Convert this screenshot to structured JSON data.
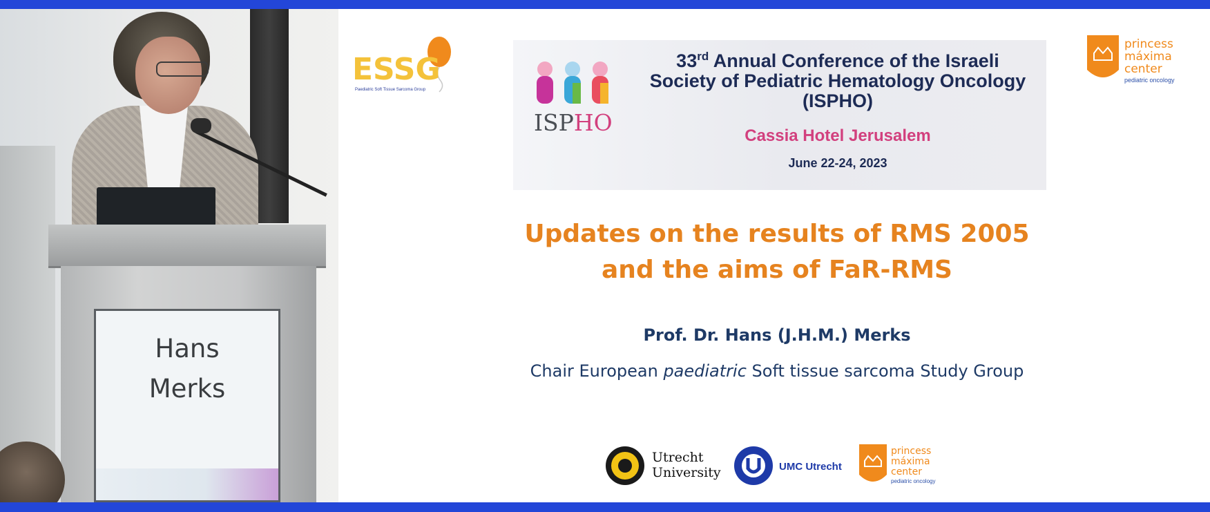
{
  "speaker_panel": {
    "podium_name_line1": "Hans",
    "podium_name_line2": "Merks"
  },
  "slide": {
    "logos": {
      "top_left": "ESSG",
      "top_left_tagline": "Paediatric Soft Tissue Sarcoma Group",
      "top_right_line1": "princess",
      "top_right_line2": "máxima",
      "top_right_line3": "center",
      "top_right_tagline": "pediatric oncology"
    },
    "banner": {
      "title_prefix": "33",
      "title_sup": "rd",
      "title_rest": "Annual Conference of the Israeli Society of Pediatric Hematology Oncology (ISPHO)",
      "ispho_part1": "ISP",
      "ispho_part2": "HO",
      "venue": "Cassia Hotel Jerusalem",
      "dates": "June 22-24, 2023"
    },
    "title_line1": "Updates on the results of RMS 2005",
    "title_line2": "and the aims of FaR-RMS",
    "presenter": "Prof. Dr. Hans (J.H.M.) Merks",
    "affiliation_before": "Chair European ",
    "affiliation_italic": "paediatric",
    "affiliation_after": " Soft tissue sarcoma Study Group",
    "bottom_logos": {
      "uu_line1": "Utrecht",
      "uu_line2": "University",
      "umc": "UMC Utrecht",
      "pmc_line1": "princess",
      "pmc_line2": "máxima",
      "pmc_line3": "center",
      "pmc_tagline": "pediatric oncology"
    }
  },
  "colors": {
    "frame_border": "#2346d8",
    "title_orange": "#e6831f",
    "text_navy": "#1e3a66",
    "ispho_pink": "#d2407e"
  }
}
